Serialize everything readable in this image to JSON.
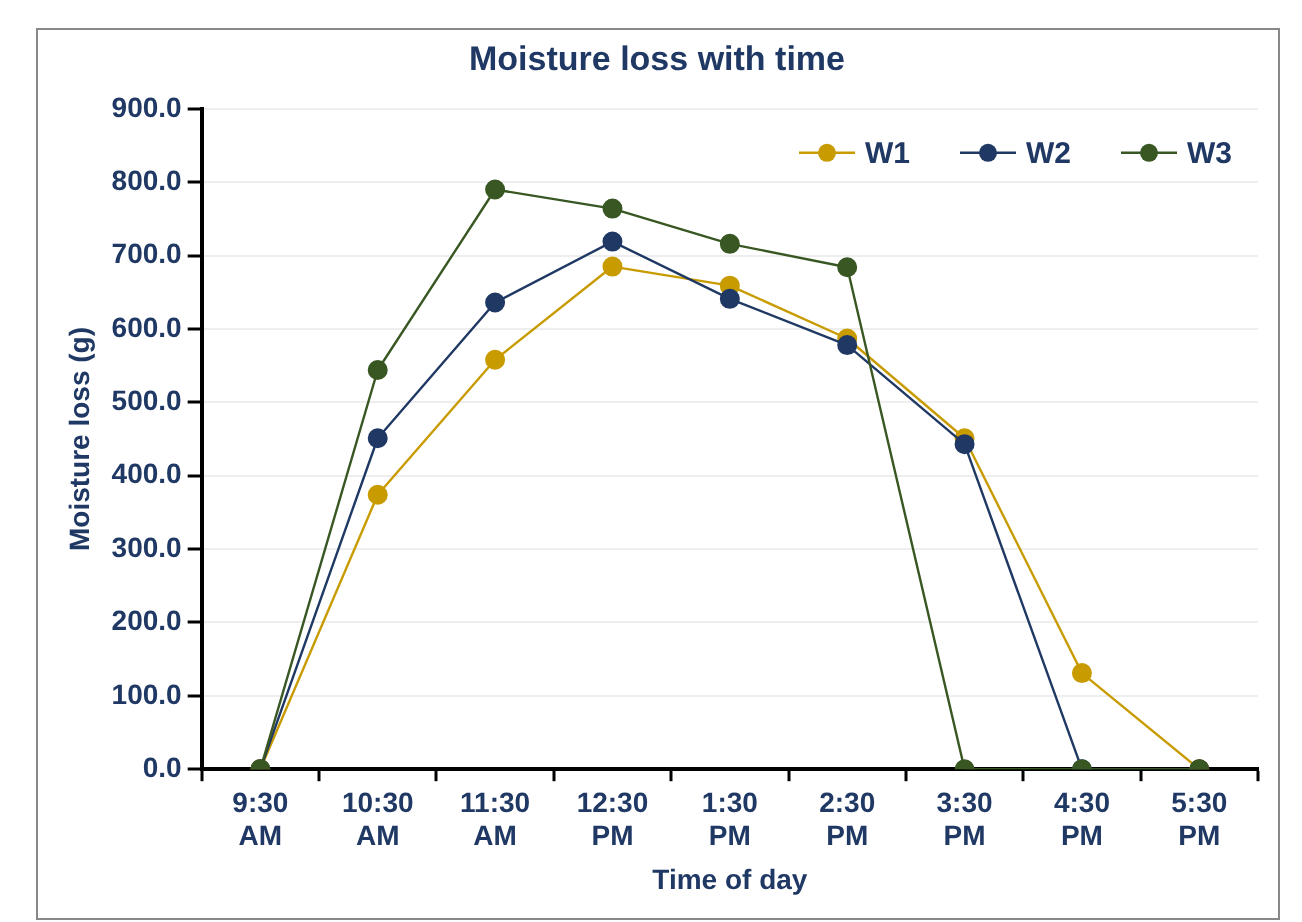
{
  "chart_data": {
    "type": "line",
    "title": "Moisture loss with time",
    "xlabel": "Time of day",
    "ylabel": "Moisture loss (g)",
    "categories": [
      "9:30 AM",
      "10:30 AM",
      "11:30 AM",
      "12:30 PM",
      "1:30 PM",
      "2:30 PM",
      "3:30 PM",
      "4:30 PM",
      "5:30 PM"
    ],
    "series": [
      {
        "name": "W1",
        "color": "#c89b00",
        "values": [
          0,
          374,
          558,
          685,
          659,
          587,
          451,
          131,
          0
        ]
      },
      {
        "name": "W2",
        "color": "#1f3864",
        "values": [
          0,
          451,
          636,
          719,
          641,
          578,
          443,
          0,
          0
        ]
      },
      {
        "name": "W3",
        "color": "#385723",
        "values": [
          0,
          544,
          790,
          764,
          716,
          684,
          0,
          0,
          0
        ]
      }
    ],
    "ylim": [
      0,
      900
    ],
    "yticks": [
      {
        "value": 0,
        "label": "0.0"
      },
      {
        "value": 100,
        "label": "100.0"
      },
      {
        "value": 200,
        "label": "200.0"
      },
      {
        "value": 300,
        "label": "300.0"
      },
      {
        "value": 400,
        "label": "400.0"
      },
      {
        "value": 500,
        "label": "500.0"
      },
      {
        "value": 600,
        "label": "600.0"
      },
      {
        "value": 700,
        "label": "700.0"
      },
      {
        "value": 800,
        "label": "800.0"
      },
      {
        "value": 900,
        "label": "900.0"
      }
    ],
    "grid": "y",
    "legend": "top right",
    "marker": "circle",
    "line_style": "solid"
  }
}
